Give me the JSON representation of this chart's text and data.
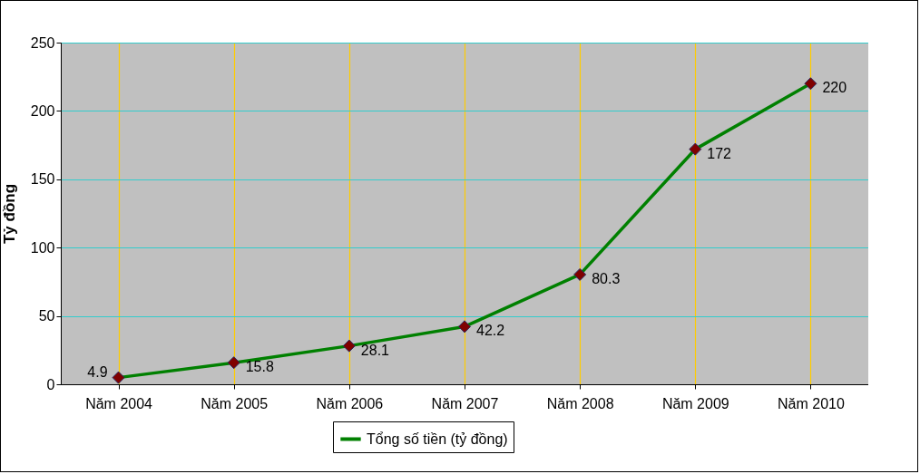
{
  "chart_data": {
    "type": "line",
    "ylabel": "Tỷ đồng",
    "categories": [
      "Năm 2004",
      "Năm 2005",
      "Năm 2006",
      "Năm 2007",
      "Năm 2008",
      "Năm 2009",
      "Năm 2010"
    ],
    "series": [
      {
        "name": "Tổng số tiền (tỷ đồng)",
        "color": "#008000",
        "values": [
          4.9,
          15.8,
          28.1,
          42.2,
          80.3,
          172,
          220
        ]
      }
    ],
    "ylim": [
      0,
      250
    ],
    "yticks": [
      0,
      50,
      100,
      150,
      200,
      250
    ],
    "grid": true,
    "legend": "bottom",
    "marker": "diamond",
    "line_style": "solid",
    "data_labels": true
  }
}
